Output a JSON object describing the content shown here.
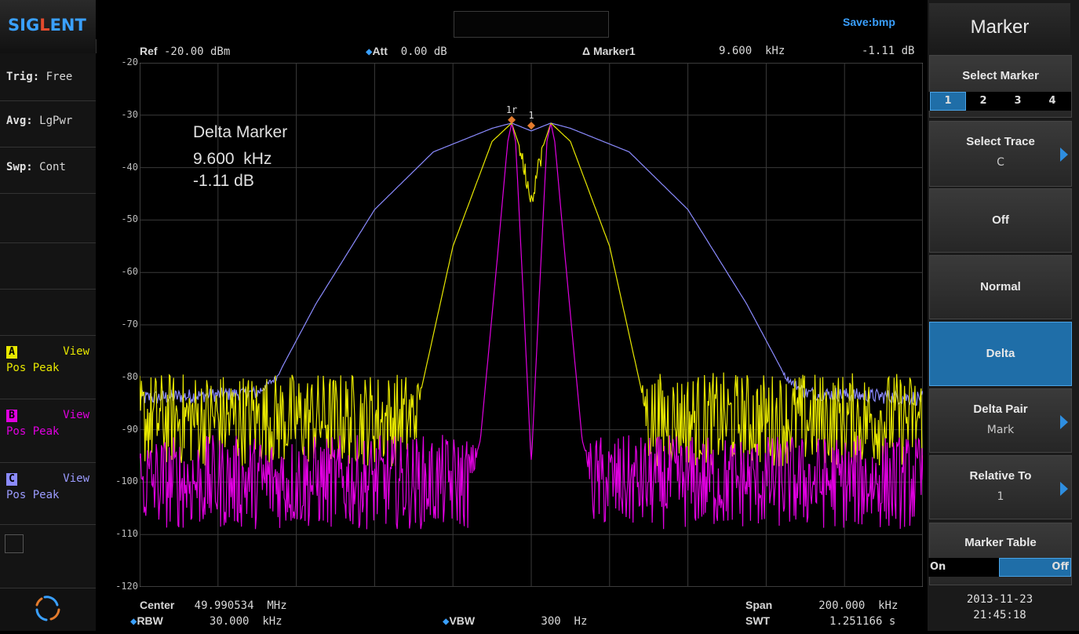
{
  "brand": {
    "logo_text_a": "SIG",
    "logo_text_b": "L",
    "logo_text_c": "ENT"
  },
  "status_bar": {
    "save_text": "Save:bmp"
  },
  "left_panel": {
    "trig_label": "Trig:",
    "trig_value": "Free",
    "avg_label": "Avg:",
    "avg_value": "LgPwr",
    "swp_label": "Swp:",
    "swp_value": "Cont",
    "traces": [
      {
        "badge": "A",
        "view": "View",
        "mode": "Pos Peak",
        "color": "#e8e800"
      },
      {
        "badge": "B",
        "view": "View",
        "mode": "Pos Peak",
        "color": "#e000e0"
      },
      {
        "badge": "C",
        "view": "View",
        "mode": "Pos Peak",
        "color": "#8b8bff"
      }
    ]
  },
  "header": {
    "ref_label": "Ref",
    "ref_value": "-20.00 dBm",
    "att_label": "Att",
    "att_value": "0.00 dB",
    "marker_label": "Δ Marker1",
    "marker_freq": "9.600  kHz",
    "marker_amp": "-1.11 dB"
  },
  "annotation": {
    "title": "Delta Marker",
    "freq": "9.600  kHz",
    "amp": "-1.11 dB"
  },
  "markers": [
    {
      "label": "1r"
    },
    {
      "label": "1"
    }
  ],
  "footer": {
    "center_label": "Center",
    "center_value": "49.990534  MHz",
    "span_label": "Span",
    "span_value": "200.000  kHz",
    "rbw_label": "RBW",
    "rbw_value": "30.000  kHz",
    "vbw_label": "VBW",
    "vbw_value": "300  Hz",
    "swt_label": "SWT",
    "swt_value": "1.251166 s"
  },
  "menu": {
    "title": "Marker",
    "select_marker": {
      "label": "Select Marker",
      "options": [
        "1",
        "2",
        "3",
        "4"
      ],
      "selected": "1"
    },
    "select_trace": {
      "label": "Select Trace",
      "value": "C"
    },
    "off_label": "Off",
    "normal_label": "Normal",
    "delta_label": "Delta",
    "delta_pair": {
      "label": "Delta Pair",
      "value": "Mark"
    },
    "relative_to": {
      "label": "Relative To",
      "value": "1"
    },
    "marker_table": {
      "label": "Marker Table",
      "on": "On",
      "off": "Off",
      "selected": "Off"
    }
  },
  "datetime": {
    "date": "2013-11-23",
    "time": "21:45:18"
  },
  "chart_data": {
    "type": "line",
    "y_axis_ticks": [
      "-20",
      "-30",
      "-40",
      "-50",
      "-60",
      "-70",
      "-80",
      "-90",
      "-100",
      "-110",
      "-120"
    ],
    "ylim": [
      -120,
      -20
    ],
    "xlim_khz": [
      -100,
      100
    ],
    "series": [
      {
        "name": "A",
        "color": "#e8e800",
        "x": [
          -100,
          -30,
          -28,
          -20,
          -10,
          -5,
          -3,
          0,
          3,
          5,
          10,
          20,
          28,
          30,
          100
        ],
        "y": [
          -88,
          -88,
          -82,
          -55,
          -35,
          -31.5,
          -36,
          -46,
          -36,
          -31.5,
          -35,
          -55,
          -82,
          -88,
          -88
        ]
      },
      {
        "name": "B",
        "color": "#e000e0",
        "x": [
          -100,
          -16,
          -13,
          -9,
          -6,
          -5,
          -4,
          -2,
          0,
          2,
          4,
          5,
          6,
          9,
          13,
          16,
          100
        ],
        "y": [
          -100,
          -100,
          -92,
          -60,
          -35,
          -31.5,
          -35,
          -65,
          -97,
          -65,
          -35,
          -31.5,
          -35,
          -60,
          -92,
          -100,
          -100
        ]
      },
      {
        "name": "C",
        "color": "#8b8bff",
        "x": [
          -100,
          -70,
          -65,
          -55,
          -40,
          -25,
          -10,
          -5,
          0,
          5,
          10,
          25,
          40,
          55,
          65,
          70,
          100
        ],
        "y": [
          -84,
          -83,
          -80,
          -66,
          -48,
          -37,
          -32.5,
          -31.5,
          -33,
          -31.5,
          -32.5,
          -37,
          -48,
          -66,
          -80,
          -83,
          -84
        ]
      }
    ],
    "marker_points": [
      {
        "label": "1r",
        "x": -5,
        "y": -31.5
      },
      {
        "label": "1",
        "x": 0,
        "y": -32.6
      }
    ]
  }
}
